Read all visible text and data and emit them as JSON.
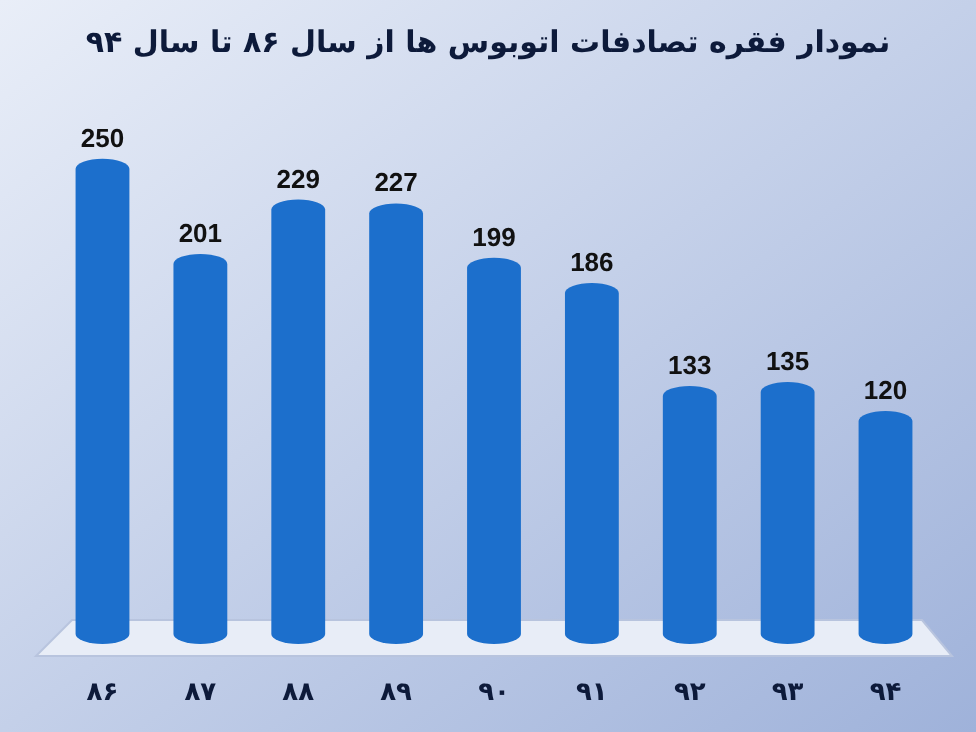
{
  "chart_data": {
    "type": "bar",
    "title": "نمودار فقره تصادفات اتوبوس ها از سال ۸۶ تا سال ۹۴",
    "categories": [
      "۸۶",
      "۸۷",
      "۸۸",
      "۸۹",
      "۹۰",
      "۹۱",
      "۹۲",
      "۹۳",
      "۹۴"
    ],
    "values": [
      250,
      201,
      229,
      227,
      199,
      186,
      133,
      135,
      120
    ],
    "color": "#1c6fcc",
    "data_labels": true
  }
}
